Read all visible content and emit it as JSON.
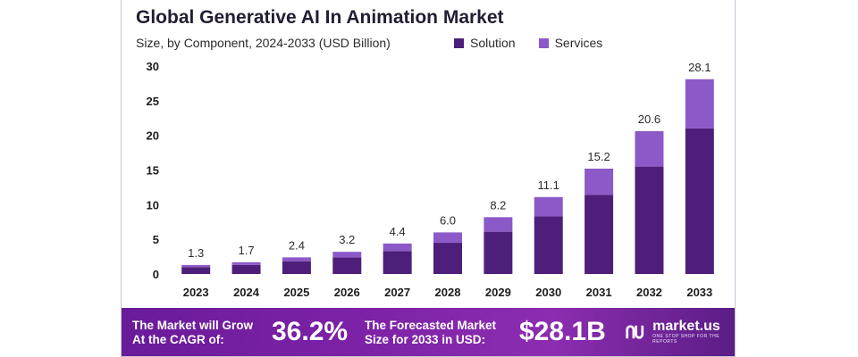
{
  "chart_data": {
    "type": "bar",
    "stacked": true,
    "title": "Global Generative AI In Animation Market",
    "subtitle": "Size, by Component, 2024-2033 (USD Billion)",
    "categories": [
      "2023",
      "2024",
      "2025",
      "2026",
      "2027",
      "2028",
      "2029",
      "2030",
      "2031",
      "2032",
      "2033"
    ],
    "series": [
      {
        "name": "Solution",
        "values": [
          1.0,
          1.3,
          1.8,
          2.4,
          3.3,
          4.5,
          6.1,
          8.3,
          11.4,
          15.5,
          21.0
        ]
      },
      {
        "name": "Services",
        "values": [
          0.3,
          0.4,
          0.6,
          0.8,
          1.1,
          1.5,
          2.1,
          2.8,
          3.8,
          5.1,
          7.1
        ]
      }
    ],
    "totals": [
      "1.3",
      "1.7",
      "2.4",
      "3.2",
      "4.4",
      "6.0",
      "8.2",
      "11.1",
      "15.2",
      "20.6",
      "28.1"
    ],
    "ylim": [
      0,
      30
    ],
    "yticks": [
      "0",
      "5",
      "10",
      "15",
      "20",
      "25",
      "30"
    ],
    "xlabel": "",
    "ylabel": "",
    "grid": false,
    "legend_position": "top-right",
    "colors": {
      "Solution": "#4e1f7a",
      "Services": "#8c5ac8"
    }
  },
  "footer": {
    "cagr_label_line1": "The Market will Grow",
    "cagr_label_line2": "At the CAGR of:",
    "cagr_value": "36.2%",
    "forecast_label_line1": "The Forecasted Market",
    "forecast_label_line2": "Size for 2033 in USD:",
    "forecast_value": "$28.1B"
  },
  "brand": {
    "name": "market.us",
    "tagline": "ONE STOP SHOP FOR THE REPORTS",
    "icon": "market-us-logo-icon"
  }
}
